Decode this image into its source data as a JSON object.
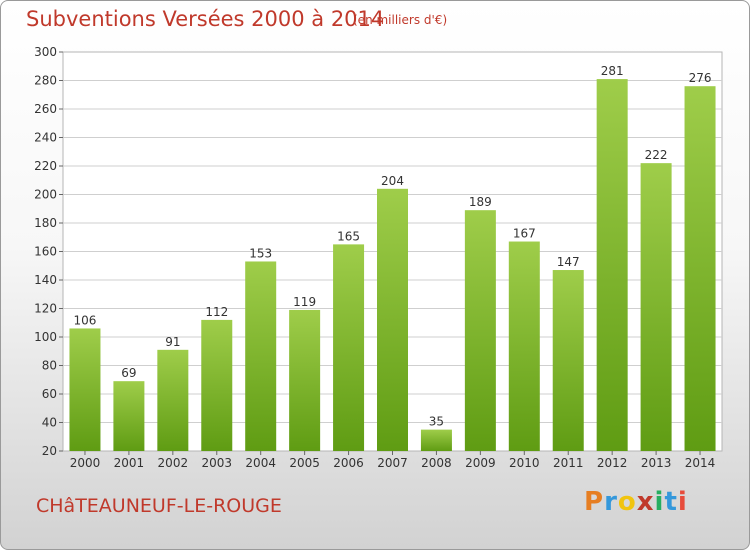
{
  "header": {
    "title": "Subventions Versées 2000 à 2014",
    "unit": "(en milliers d'€)"
  },
  "footer": {
    "commune": "CHâTEAUNEUF-LE-ROUGE",
    "logo": "Proxiti"
  },
  "colors": {
    "title": "#c0392b",
    "bar_top": "#9fcd4a",
    "bar_bottom": "#5f9c13",
    "grid": "#cfcfcf",
    "logo": [
      "#e67e22",
      "#3498db",
      "#f1c40f",
      "#c0392b",
      "#27ae60",
      "#3498db",
      "#e74c3c"
    ]
  },
  "chart_data": {
    "type": "bar",
    "categories": [
      "2000",
      "2001",
      "2002",
      "2003",
      "2004",
      "2005",
      "2006",
      "2007",
      "2008",
      "2009",
      "2010",
      "2011",
      "2012",
      "2013",
      "2014"
    ],
    "values": [
      106,
      69,
      91,
      112,
      153,
      119,
      165,
      204,
      35,
      189,
      167,
      147,
      281,
      222,
      276
    ],
    "ylim": [
      20,
      300
    ],
    "yticks": [
      20,
      40,
      60,
      80,
      100,
      120,
      140,
      160,
      180,
      200,
      220,
      240,
      260,
      280,
      300
    ],
    "grid": true
  }
}
